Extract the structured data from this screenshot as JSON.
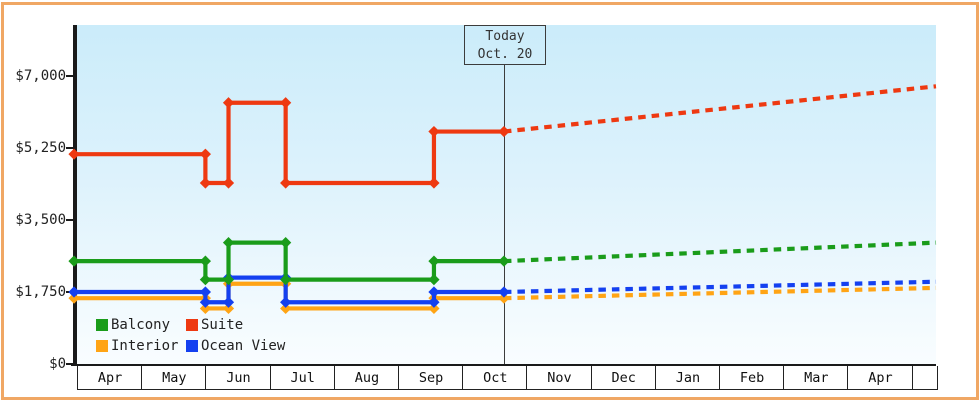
{
  "chart_data": {
    "type": "line",
    "title": "",
    "description_visible_text_only": "stepped price history with dashed forecast after today",
    "y_axis": {
      "min": 0,
      "max": 7000,
      "ticks": [
        {
          "label": "$0",
          "value": 0
        },
        {
          "label": "$1,750",
          "value": 1750
        },
        {
          "label": "$3,500",
          "value": 3500
        },
        {
          "label": "$5,250",
          "value": 5250
        },
        {
          "label": "$7,000",
          "value": 7000
        }
      ]
    },
    "x_axis": {
      "months": [
        "Apr",
        "May",
        "Jun",
        "Jul",
        "Aug",
        "Sep",
        "Oct",
        "Nov",
        "Dec",
        "Jan",
        "Feb",
        "Mar",
        "Apr"
      ]
    },
    "today": {
      "line1": "Today",
      "line2": "Oct. 20",
      "month_position": 6.65
    },
    "end_month_position": 13.38,
    "series": [
      {
        "name": "Interior",
        "color": "#ffa415",
        "steps": [
          {
            "m": 0,
            "value": 1600
          },
          {
            "m": 2,
            "value": 1350
          },
          {
            "m": 2.36,
            "value": 1950
          },
          {
            "m": 3.25,
            "value": 1350
          },
          {
            "m": 5.56,
            "value": 1600
          }
        ],
        "forecast_end_value": 1850
      },
      {
        "name": "Ocean View",
        "color": "#1440f0",
        "steps": [
          {
            "m": 0,
            "value": 1750
          },
          {
            "m": 2,
            "value": 1500
          },
          {
            "m": 2.36,
            "value": 2100
          },
          {
            "m": 3.25,
            "value": 1500
          },
          {
            "m": 5.56,
            "value": 1750
          }
        ],
        "forecast_end_value": 2000
      },
      {
        "name": "Balcony",
        "color": "#1a9c1a",
        "steps": [
          {
            "m": 0,
            "value": 2500
          },
          {
            "m": 2,
            "value": 2050
          },
          {
            "m": 2.36,
            "value": 2950
          },
          {
            "m": 3.25,
            "value": 2050
          },
          {
            "m": 5.56,
            "value": 2500
          }
        ],
        "forecast_end_value": 2950
      },
      {
        "name": "Suite",
        "color": "#ee3911",
        "steps": [
          {
            "m": 0,
            "value": 5100
          },
          {
            "m": 2,
            "value": 4400
          },
          {
            "m": 2.36,
            "value": 6350
          },
          {
            "m": 3.25,
            "value": 4400
          },
          {
            "m": 5.56,
            "value": 5650
          }
        ],
        "forecast_end_value": 6750
      }
    ],
    "legend": {
      "position": "bottom-left",
      "items": [
        {
          "label": "Balcony",
          "color": "#1a9c1a"
        },
        {
          "label": "Suite",
          "color": "#ee3911"
        },
        {
          "label": "Interior",
          "color": "#ffa415"
        },
        {
          "label": "Ocean View",
          "color": "#1440f0"
        }
      ]
    },
    "layout_hints": {
      "grid": "off",
      "forecast_style": "dashed",
      "marker": "diamond"
    }
  },
  "colors": {
    "frame_border": "#f0a764",
    "axis": "#1a1a1a",
    "today_line": "#3c3c3c",
    "plot_gradient_top": "#cbecfa",
    "plot_gradient_bottom": "#f9fdff"
  }
}
